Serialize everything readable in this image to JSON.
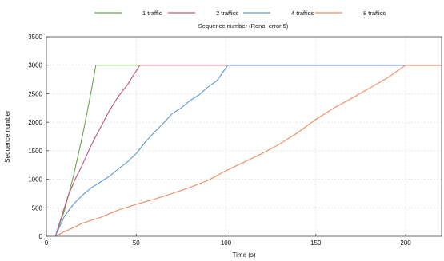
{
  "chart_data": {
    "type": "line",
    "title": "Sequence number (Reno; error 5)",
    "xlabel": "Time (s)",
    "ylabel": "Sequence number",
    "xlim": [
      0,
      220
    ],
    "ylim": [
      0,
      3500
    ],
    "xticks": [
      0,
      50,
      100,
      150,
      200
    ],
    "yticks": [
      0,
      500,
      1000,
      1500,
      2000,
      2500,
      3000,
      3500
    ],
    "grid": true,
    "legend_position": "top",
    "series": [
      {
        "name": "1 traffic",
        "color": "#6aa84f",
        "points": [
          [
            5,
            0
          ],
          [
            10,
            450
          ],
          [
            15,
            1050
          ],
          [
            20,
            1750
          ],
          [
            25,
            2550
          ],
          [
            27.5,
            3000
          ],
          [
            220,
            3000
          ]
        ]
      },
      {
        "name": "2 traffics",
        "color": "#c2547a",
        "points": [
          [
            5,
            0
          ],
          [
            8,
            300
          ],
          [
            12,
            700
          ],
          [
            16,
            1000
          ],
          [
            20,
            1250
          ],
          [
            25,
            1600
          ],
          [
            30,
            1900
          ],
          [
            35,
            2200
          ],
          [
            40,
            2450
          ],
          [
            45,
            2650
          ],
          [
            52,
            3000
          ],
          [
            220,
            3000
          ]
        ]
      },
      {
        "name": "4 traffics",
        "color": "#5b9bd5",
        "points": [
          [
            5,
            0
          ],
          [
            10,
            350
          ],
          [
            15,
            560
          ],
          [
            20,
            720
          ],
          [
            25,
            850
          ],
          [
            30,
            950
          ],
          [
            35,
            1050
          ],
          [
            40,
            1180
          ],
          [
            45,
            1300
          ],
          [
            50,
            1450
          ],
          [
            55,
            1650
          ],
          [
            60,
            1820
          ],
          [
            65,
            1980
          ],
          [
            70,
            2150
          ],
          [
            75,
            2250
          ],
          [
            80,
            2380
          ],
          [
            85,
            2480
          ],
          [
            90,
            2620
          ],
          [
            95,
            2730
          ],
          [
            101,
            3000
          ],
          [
            220,
            3000
          ]
        ]
      },
      {
        "name": "8 traffics",
        "color": "#f08a5d",
        "points": [
          [
            5,
            0
          ],
          [
            10,
            80
          ],
          [
            15,
            150
          ],
          [
            20,
            230
          ],
          [
            30,
            330
          ],
          [
            40,
            460
          ],
          [
            50,
            560
          ],
          [
            60,
            650
          ],
          [
            70,
            750
          ],
          [
            80,
            860
          ],
          [
            90,
            980
          ],
          [
            100,
            1150
          ],
          [
            110,
            1300
          ],
          [
            120,
            1450
          ],
          [
            130,
            1620
          ],
          [
            140,
            1820
          ],
          [
            150,
            2050
          ],
          [
            160,
            2250
          ],
          [
            170,
            2420
          ],
          [
            180,
            2600
          ],
          [
            190,
            2780
          ],
          [
            200,
            3000
          ],
          [
            220,
            3000
          ]
        ]
      }
    ]
  }
}
